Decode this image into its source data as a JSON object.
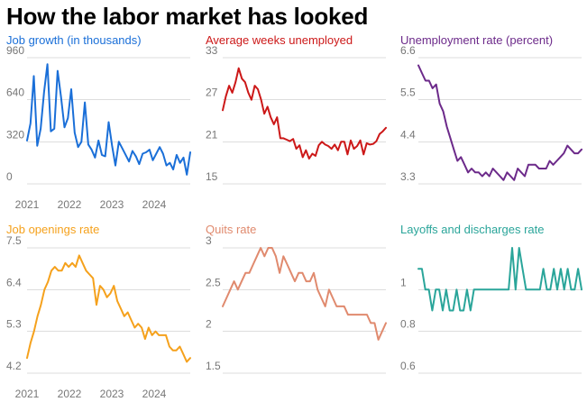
{
  "title": "How the labor market has looked",
  "chart_data": [
    {
      "type": "line",
      "title": "Job growth (in thousands)",
      "color": "#1a6fd8",
      "ylim": [
        0,
        960
      ],
      "yticks": [
        "960",
        "640",
        "320",
        "0"
      ],
      "xticks": [
        "2021",
        "2022",
        "2023",
        "2024"
      ],
      "grid": true,
      "x_range": [
        "2021-01",
        "2024-10"
      ],
      "series": [
        {
          "values": [
            330,
            460,
            820,
            290,
            420,
            700,
            910,
            400,
            420,
            860,
            660,
            430,
            500,
            720,
            390,
            280,
            320,
            620,
            300,
            260,
            200,
            330,
            220,
            210,
            470,
            290,
            140,
            320,
            270,
            220,
            170,
            250,
            210,
            150,
            230,
            240,
            260,
            180,
            230,
            280,
            230,
            140,
            160,
            110,
            220,
            160,
            200,
            70,
            240
          ]
        }
      ]
    },
    {
      "type": "line",
      "title": "Average weeks unemployed",
      "color": "#cc1818",
      "ylim": [
        15,
        33
      ],
      "yticks": [
        "33",
        "27",
        "21",
        "15"
      ],
      "xticks": [],
      "grid": true,
      "x_range": [
        "2021-01",
        "2024-10"
      ],
      "series": [
        {
          "values": [
            25.5,
            27.5,
            29.0,
            28.0,
            29.5,
            31.5,
            30.0,
            29.5,
            28.0,
            27.0,
            29.0,
            28.5,
            27.0,
            25.0,
            26.0,
            24.5,
            23.5,
            24.5,
            21.5,
            21.5,
            21.3,
            21.1,
            21.4,
            20.0,
            20.5,
            18.8,
            19.8,
            18.6,
            19.3,
            19.0,
            20.5,
            21.0,
            20.6,
            20.4,
            20.0,
            20.6,
            19.8,
            21.0,
            21.0,
            19.2,
            21.2,
            20.0,
            20.4,
            21.2,
            19.2,
            20.8,
            20.6,
            20.7,
            21.1,
            22.1,
            22.5,
            23.0
          ]
        }
      ]
    },
    {
      "type": "line",
      "title": "Unemployment rate (percent)",
      "color": "#6c2a8a",
      "ylim": [
        3.3,
        6.6
      ],
      "yticks": [
        "6.6",
        "5.5",
        "4.4",
        "3.3"
      ],
      "xticks": [],
      "grid": true,
      "x_range": [
        "2021-01",
        "2024-10"
      ],
      "series": [
        {
          "values": [
            6.4,
            6.2,
            6.0,
            6.0,
            5.8,
            5.9,
            5.4,
            5.2,
            4.8,
            4.5,
            4.2,
            3.9,
            4.0,
            3.8,
            3.6,
            3.7,
            3.6,
            3.6,
            3.5,
            3.6,
            3.5,
            3.7,
            3.6,
            3.5,
            3.4,
            3.6,
            3.5,
            3.4,
            3.7,
            3.6,
            3.5,
            3.8,
            3.8,
            3.8,
            3.7,
            3.7,
            3.7,
            3.9,
            3.8,
            3.9,
            4.0,
            4.1,
            4.3,
            4.2,
            4.1,
            4.1,
            4.2
          ]
        }
      ]
    },
    {
      "type": "line",
      "title": "Job openings rate",
      "color": "#f5a11c",
      "ylim": [
        4.2,
        7.5
      ],
      "yticks": [
        "7.5",
        "6.4",
        "5.3",
        "4.2"
      ],
      "xticks": [
        "2021",
        "2022",
        "2023",
        "2024"
      ],
      "grid": true,
      "x_range": [
        "2021-01",
        "2024-10"
      ],
      "series": [
        {
          "values": [
            4.6,
            5.0,
            5.3,
            5.7,
            6.0,
            6.4,
            6.6,
            6.9,
            7.0,
            6.9,
            6.9,
            7.1,
            7.0,
            7.1,
            7.0,
            7.3,
            7.1,
            6.9,
            6.8,
            6.7,
            6.0,
            6.5,
            6.4,
            6.2,
            6.3,
            6.5,
            6.1,
            5.9,
            5.7,
            5.8,
            5.6,
            5.4,
            5.5,
            5.4,
            5.1,
            5.4,
            5.2,
            5.3,
            5.2,
            5.2,
            5.2,
            4.9,
            4.8,
            4.8,
            4.9,
            4.7,
            4.5,
            4.6
          ]
        }
      ]
    },
    {
      "type": "line",
      "title": "Quits rate",
      "color": "#e08a6e",
      "ylim": [
        1.5,
        3
      ],
      "yticks": [
        "3",
        "2.5",
        "2",
        "1.5"
      ],
      "xticks": [],
      "grid": true,
      "x_range": [
        "2021-01",
        "2024-10"
      ],
      "series": [
        {
          "values": [
            2.3,
            2.4,
            2.5,
            2.6,
            2.5,
            2.6,
            2.7,
            2.7,
            2.8,
            2.9,
            3.0,
            2.9,
            3.0,
            3.0,
            2.9,
            2.7,
            2.9,
            2.8,
            2.7,
            2.6,
            2.7,
            2.7,
            2.6,
            2.6,
            2.7,
            2.5,
            2.4,
            2.3,
            2.5,
            2.4,
            2.3,
            2.3,
            2.3,
            2.2,
            2.2,
            2.2,
            2.2,
            2.2,
            2.2,
            2.1,
            2.1,
            1.9,
            2.0,
            2.1
          ]
        }
      ]
    },
    {
      "type": "line",
      "title": "Layoffs and discharges rate",
      "color": "#2aa59a",
      "ylim": [
        0.6,
        1.2
      ],
      "yticks": [
        "1",
        "0.8",
        "0.6"
      ],
      "xticks": [],
      "grid": true,
      "x_range": [
        "2021-01",
        "2024-10"
      ],
      "series": [
        {
          "values": [
            1.1,
            1.1,
            1.0,
            1.0,
            0.9,
            1.0,
            1.0,
            0.9,
            1.0,
            0.9,
            0.9,
            1.0,
            0.9,
            0.9,
            1.0,
            0.9,
            1.0,
            1.0,
            1.0,
            1.0,
            1.0,
            1.0,
            1.0,
            1.0,
            1.0,
            1.0,
            1.0,
            1.2,
            1.0,
            1.2,
            1.1,
            1.0,
            1.0,
            1.0,
            1.0,
            1.0,
            1.1,
            1.0,
            1.0,
            1.1,
            1.0,
            1.1,
            1.0,
            1.1,
            1.0,
            1.0,
            1.1,
            1.0
          ]
        }
      ]
    }
  ]
}
